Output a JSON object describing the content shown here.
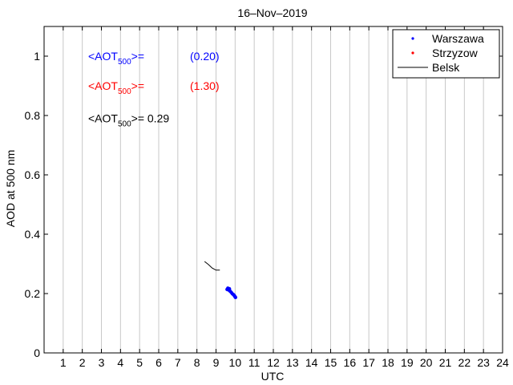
{
  "chart_data": {
    "type": "line",
    "title": "16–Nov–2019",
    "xlabel": "UTC",
    "ylabel": "AOD at 500 nm",
    "xlim": [
      0,
      24
    ],
    "ylim": [
      0,
      1.1
    ],
    "x_ticks": [
      "1",
      "2",
      "3",
      "4",
      "5",
      "6",
      "7",
      "8",
      "9",
      "10",
      "11",
      "12",
      "13",
      "14",
      "15",
      "16",
      "17",
      "18",
      "19",
      "20",
      "21",
      "22",
      "23",
      "24"
    ],
    "y_ticks": [
      "0",
      "0.2",
      "0.4",
      "0.6",
      "0.8",
      "1"
    ],
    "grid": "x-only",
    "legend_position": "top-right",
    "series": [
      {
        "name": "Warszawa",
        "style": "points",
        "color": "#0000ff",
        "x": [
          9.58,
          9.62,
          9.66,
          9.7,
          9.74,
          9.8,
          9.86,
          9.92,
          9.96,
          10.0,
          10.02
        ],
        "y": [
          0.214,
          0.218,
          0.212,
          0.216,
          0.208,
          0.204,
          0.199,
          0.196,
          0.193,
          0.189,
          0.187
        ]
      },
      {
        "name": "Strzyzow",
        "style": "points",
        "color": "#ff0000",
        "x": [],
        "y": []
      },
      {
        "name": "Belsk",
        "style": "line",
        "color": "#000000",
        "x": [
          8.4,
          8.6,
          8.8,
          9.0,
          9.2
        ],
        "y": [
          0.308,
          0.298,
          0.286,
          0.279,
          0.279
        ]
      }
    ],
    "annotations": [
      {
        "label": "<AOT",
        "sub": "500",
        "suffix": ">=",
        "value": "(0.20)",
        "color": "#0000ff"
      },
      {
        "label": "<AOT",
        "sub": "500",
        "suffix": ">=",
        "value": "(1.30)",
        "color": "#ff0000"
      },
      {
        "label": "<AOT",
        "sub": "500",
        "suffix": ">= 0.29",
        "value": "",
        "color": "#000000"
      }
    ]
  }
}
